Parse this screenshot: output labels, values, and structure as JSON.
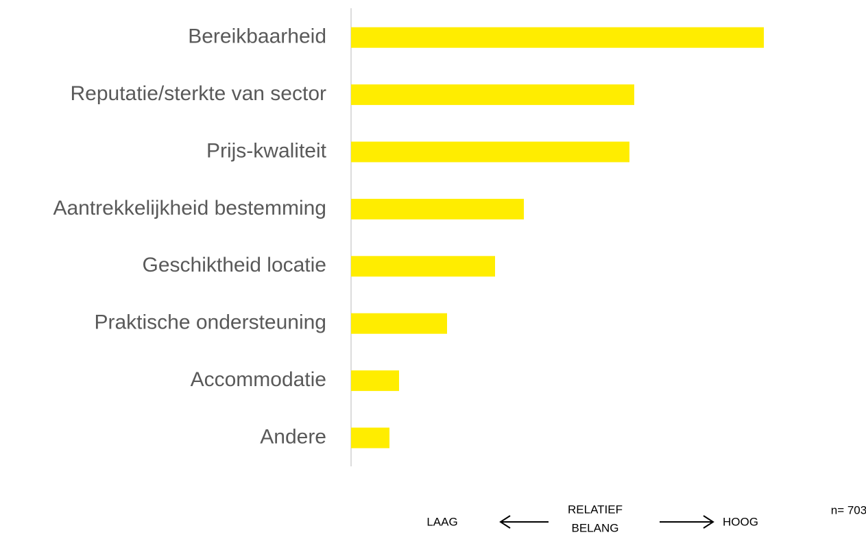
{
  "chart_data": {
    "type": "hbar",
    "categories": [
      "Bereikbaarheid",
      "Reputatie/sterkte van sector",
      "Prijs-kwaliteit",
      "Aantrekkelijkheid bestemming",
      "Geschiktheid locatie",
      "Praktische ondersteuning",
      "Accommodatie",
      "Andere"
    ],
    "values": [
      86,
      59,
      58,
      36,
      30,
      20,
      10,
      8
    ],
    "color": "#ffed00",
    "xlim": [
      0,
      100
    ],
    "axis_labels": {
      "low": "LAAG",
      "middle": [
        "RELATIEF",
        "BELANG"
      ],
      "high": "HOOG"
    },
    "note": "n= 703"
  }
}
